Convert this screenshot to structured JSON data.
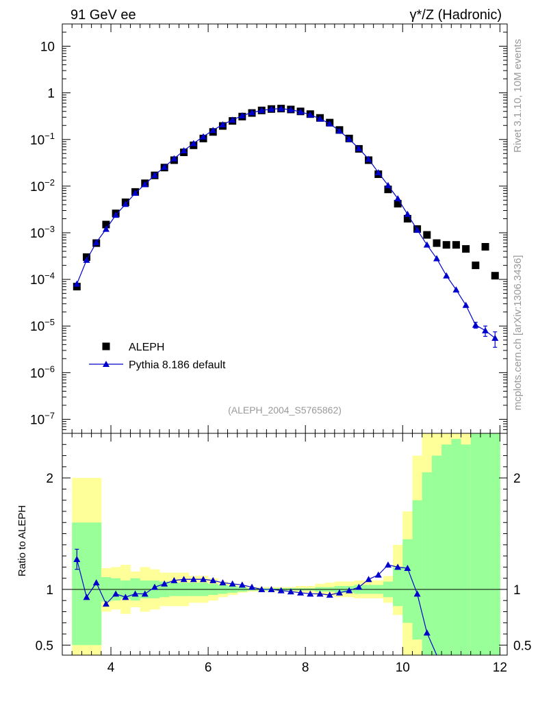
{
  "header": {
    "left_title": "91 GeV ee",
    "right_title": "γ*/Z (Hadronic)",
    "side_label_top": "Rivet 3.1.10,  10M events",
    "side_label_bottom": "mcplots.cern.ch [arXiv:1306.3436]",
    "analysis_tag": "(ALEPH_2004_S5765862)"
  },
  "colors": {
    "data": "#000000",
    "mc": "#0000cc",
    "band_inner": "#99ff99",
    "band_outer": "#ffff99",
    "axis": "#000000",
    "side_text": "#999999"
  },
  "chart_data": [
    {
      "type": "scatter",
      "panel": "main",
      "title": "",
      "xlabel": "",
      "ylabel": "",
      "yscale": "log",
      "xlim": [
        3,
        12.15
      ],
      "ylim": [
        5e-08,
        30
      ],
      "x_ticks": [
        4,
        6,
        8,
        10,
        12
      ],
      "y_tick_labels": [
        "10",
        "1",
        "10^-1",
        "10^-2",
        "10^-3",
        "10^-4",
        "10^-5",
        "10^-6",
        "10^-7"
      ],
      "legend": {
        "placement": "bottom-left",
        "entries": [
          "ALEPH",
          "Pythia 8.186 default"
        ]
      },
      "x": [
        3.3,
        3.5,
        3.7,
        3.9,
        4.1,
        4.3,
        4.5,
        4.7,
        4.9,
        5.1,
        5.3,
        5.5,
        5.7,
        5.9,
        6.1,
        6.3,
        6.5,
        6.7,
        6.9,
        7.1,
        7.3,
        7.5,
        7.7,
        7.9,
        8.1,
        8.3,
        8.5,
        8.7,
        8.9,
        9.1,
        9.3,
        9.5,
        9.7,
        9.9,
        10.1,
        10.3,
        10.5,
        10.7,
        10.9,
        11.1,
        11.3,
        11.5,
        11.7,
        11.9
      ],
      "series": [
        {
          "name": "ALEPH",
          "marker": "square",
          "values": [
            7e-05,
            0.0003,
            0.0006,
            0.0015,
            0.0026,
            0.0045,
            0.0075,
            0.0115,
            0.017,
            0.025,
            0.036,
            0.053,
            0.075,
            0.105,
            0.145,
            0.195,
            0.25,
            0.31,
            0.37,
            0.42,
            0.45,
            0.46,
            0.44,
            0.4,
            0.35,
            0.29,
            0.23,
            0.16,
            0.105,
            0.063,
            0.036,
            0.018,
            0.0085,
            0.0042,
            0.002,
            0.0012,
            0.0009,
            0.0006,
            0.00055,
            0.00055,
            0.00045,
            0.0002,
            0.0005,
            0.00012
          ]
        },
        {
          "name": "Pythia 8.186 default",
          "marker": "triangle",
          "values": [
            8e-05,
            0.00026,
            0.00062,
            0.0012,
            0.0024,
            0.0041,
            0.0071,
            0.0109,
            0.0172,
            0.0257,
            0.0389,
            0.0578,
            0.0825,
            0.115,
            0.158,
            0.209,
            0.262,
            0.325,
            0.378,
            0.42,
            0.448,
            0.458,
            0.435,
            0.392,
            0.338,
            0.277,
            0.218,
            0.153,
            0.102,
            0.064,
            0.0378,
            0.0195,
            0.0104,
            0.0054,
            0.0025,
            0.00115,
            0.00055,
            0.00028,
            0.00012,
            6e-05,
            2.8e-05,
            1.05e-05,
            8e-06,
            5.5e-06
          ],
          "errors": [
            0.0,
            0.0,
            0.0,
            0.0,
            0.0,
            0.0,
            0.0,
            0.0,
            0.0,
            0.0,
            0.0,
            0.0,
            0.0,
            0.0,
            0.0,
            0.0,
            0.0,
            0.0,
            0.0,
            0.0,
            0.0,
            0.0,
            0.0,
            0.0,
            0.0,
            0.0,
            0.0,
            0.0,
            0.0,
            0.0,
            0.0,
            0.0,
            0.0,
            0.0,
            0.0,
            0.0,
            0.0,
            0.0,
            0.0,
            0.0,
            0.0,
            1.5e-06,
            2e-06,
            2e-06
          ]
        }
      ]
    },
    {
      "type": "line",
      "panel": "ratio",
      "title": "",
      "xlabel": "",
      "ylabel": "Ratio to ALEPH",
      "xlim": [
        3,
        12.15
      ],
      "ylim": [
        0.41,
        2.4
      ],
      "x_ticks": [
        4,
        6,
        8,
        10,
        12
      ],
      "y_tick_labels": [
        "2",
        "1",
        "0.5"
      ],
      "y_tick_values": [
        2,
        1,
        0.5
      ],
      "reference_line": 1,
      "bands": {
        "bin_edges": [
          3.2,
          3.8,
          4.0,
          4.2,
          4.4,
          4.6,
          4.8,
          5.0,
          5.2,
          5.4,
          5.6,
          5.8,
          6.0,
          6.2,
          6.4,
          6.6,
          6.8,
          7.0,
          7.2,
          7.4,
          7.6,
          7.8,
          8.0,
          8.2,
          8.4,
          8.6,
          8.8,
          9.0,
          9.2,
          9.4,
          9.6,
          9.8,
          10.0,
          10.2,
          10.4,
          10.6,
          10.8,
          11.0,
          11.2,
          11.4,
          11.6,
          11.8,
          12.0
        ],
        "inner_low": [
          0.5,
          0.89,
          0.9,
          0.92,
          0.9,
          0.92,
          0.92,
          0.93,
          0.94,
          0.94,
          0.94,
          0.94,
          0.95,
          0.96,
          0.97,
          0.98,
          0.99,
          0.99,
          0.99,
          0.99,
          0.99,
          0.99,
          0.99,
          0.98,
          0.98,
          0.97,
          0.97,
          0.96,
          0.96,
          0.96,
          0.93,
          0.85,
          0.7,
          0.55,
          0.4,
          0.4,
          0.4,
          0.4,
          0.4,
          0.4,
          0.4,
          0.4
        ],
        "inner_high": [
          1.6,
          1.11,
          1.1,
          1.08,
          1.1,
          1.08,
          1.08,
          1.07,
          1.06,
          1.06,
          1.06,
          1.06,
          1.05,
          1.04,
          1.03,
          1.02,
          1.01,
          1.01,
          1.01,
          1.01,
          1.01,
          1.01,
          1.01,
          1.02,
          1.02,
          1.03,
          1.03,
          1.04,
          1.04,
          1.04,
          1.07,
          1.2,
          1.45,
          1.8,
          2.05,
          2.2,
          2.3,
          2.35,
          2.3,
          2.4,
          2.4,
          2.4
        ],
        "outer_low": [
          0.35,
          0.8,
          0.82,
          0.78,
          0.84,
          0.8,
          0.82,
          0.85,
          0.85,
          0.85,
          0.88,
          0.88,
          0.9,
          0.93,
          0.95,
          0.97,
          0.98,
          0.98,
          0.98,
          0.98,
          0.98,
          0.97,
          0.97,
          0.95,
          0.94,
          0.93,
          0.93,
          0.92,
          0.92,
          0.92,
          0.88,
          0.77,
          0.4,
          0.4,
          0.4,
          0.4,
          0.4,
          0.4,
          0.4,
          0.4,
          0.4,
          0.4
        ],
        "outer_high": [
          2.0,
          1.19,
          1.2,
          1.22,
          1.16,
          1.2,
          1.18,
          1.15,
          1.15,
          1.15,
          1.12,
          1.12,
          1.1,
          1.07,
          1.05,
          1.03,
          1.02,
          1.02,
          1.02,
          1.02,
          1.02,
          1.03,
          1.03,
          1.05,
          1.06,
          1.07,
          1.07,
          1.08,
          1.08,
          1.08,
          1.12,
          1.4,
          1.7,
          2.2,
          2.4,
          2.4,
          2.4,
          2.4,
          2.4,
          2.4,
          2.4,
          2.4
        ]
      },
      "series": [
        {
          "name": "Pythia 8.186 default",
          "x": [
            3.3,
            3.5,
            3.7,
            3.9,
            4.1,
            4.3,
            4.5,
            4.7,
            4.9,
            5.1,
            5.3,
            5.5,
            5.7,
            5.9,
            6.1,
            6.3,
            6.5,
            6.7,
            6.9,
            7.1,
            7.3,
            7.5,
            7.7,
            7.9,
            8.1,
            8.3,
            8.5,
            8.7,
            8.9,
            9.1,
            9.3,
            9.5,
            9.7,
            9.9,
            10.1,
            10.3,
            10.5,
            10.7
          ],
          "values": [
            1.27,
            0.93,
            1.06,
            0.87,
            0.96,
            0.93,
            0.96,
            0.96,
            1.02,
            1.05,
            1.08,
            1.09,
            1.09,
            1.09,
            1.08,
            1.06,
            1.05,
            1.04,
            1.02,
            1.0,
            1.0,
            0.99,
            0.98,
            0.97,
            0.96,
            0.96,
            0.95,
            0.97,
            0.99,
            1.02,
            1.09,
            1.13,
            1.22,
            1.2,
            1.19,
            0.96,
            0.61,
            0.38
          ],
          "errors": [
            0.09,
            0.0,
            0.0,
            0.0,
            0.0,
            0.0,
            0.0,
            0.0,
            0.0,
            0.0,
            0.0,
            0.0,
            0.0,
            0.0,
            0.0,
            0.0,
            0.0,
            0.0,
            0.0,
            0.0,
            0.0,
            0.0,
            0.0,
            0.0,
            0.0,
            0.0,
            0.0,
            0.0,
            0.0,
            0.0,
            0.0,
            0.0,
            0.0,
            0.0,
            0.0,
            0.0,
            0.0,
            0.0
          ]
        }
      ]
    }
  ]
}
